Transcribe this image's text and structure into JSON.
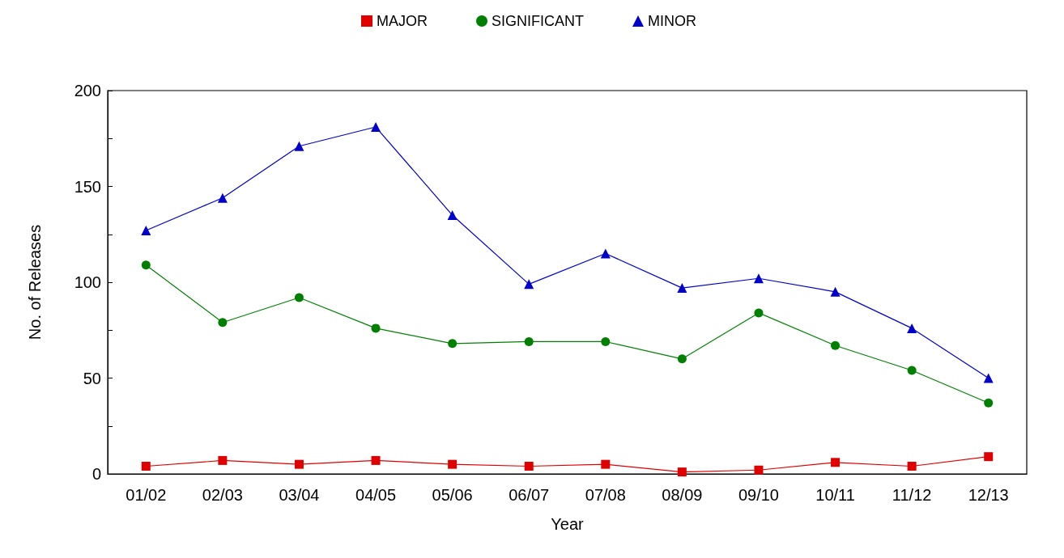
{
  "chart_data": {
    "type": "line",
    "xlabel": "Year",
    "ylabel": "No. of Releases",
    "categories": [
      "01/02",
      "02/03",
      "03/04",
      "04/05",
      "05/06",
      "06/07",
      "07/08",
      "08/09",
      "09/10",
      "10/11",
      "11/12",
      "12/13"
    ],
    "series": [
      {
        "name": "MAJOR",
        "color": "#e00000",
        "marker": "square",
        "values": [
          4,
          7,
          5,
          7,
          5,
          4,
          5,
          1,
          2,
          6,
          4,
          9
        ]
      },
      {
        "name": "SIGNIFICANT",
        "color": "#008000",
        "marker": "circle",
        "values": [
          109,
          79,
          92,
          76,
          68,
          69,
          69,
          60,
          84,
          67,
          54,
          37
        ]
      },
      {
        "name": "MINOR",
        "color": "#0000cc",
        "marker": "triangle",
        "values": [
          127,
          144,
          171,
          181,
          135,
          99,
          115,
          97,
          102,
          95,
          76,
          50
        ]
      }
    ],
    "ylim": [
      0,
      200
    ],
    "yticks": [
      0,
      {
        "value": 25,
        "label": null
      },
      50,
      {
        "value": 75,
        "label": null
      },
      100,
      {
        "value": 125,
        "label": null
      },
      150,
      {
        "value": 175,
        "label": null
      },
      200
    ],
    "grid": false,
    "legend": "top",
    "line_style": "solid"
  }
}
